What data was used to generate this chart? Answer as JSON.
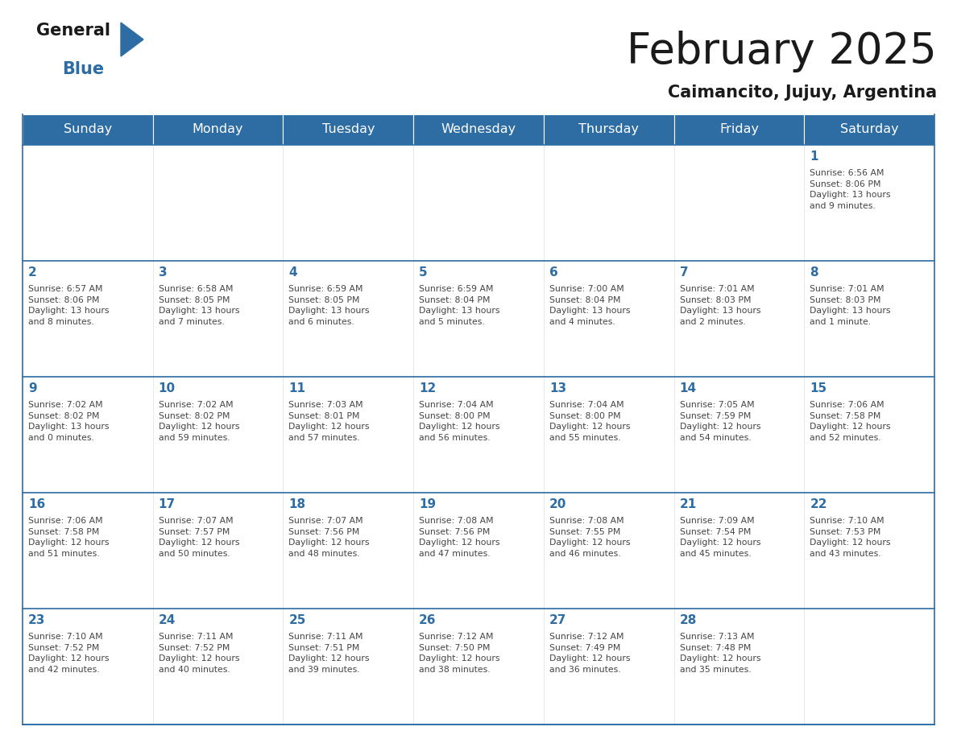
{
  "title": "February 2025",
  "subtitle": "Caimancito, Jujuy, Argentina",
  "days_of_week": [
    "Sunday",
    "Monday",
    "Tuesday",
    "Wednesday",
    "Thursday",
    "Friday",
    "Saturday"
  ],
  "header_bg": "#2E6DA4",
  "header_text": "#FFFFFF",
  "cell_bg": "#FFFFFF",
  "day_number_color": "#2E6DA4",
  "info_text_color": "#444444",
  "border_color": "#2E6DA4",
  "title_color": "#1a1a1a",
  "subtitle_color": "#1a1a1a",
  "weeks": [
    [
      {
        "day": null,
        "info": ""
      },
      {
        "day": null,
        "info": ""
      },
      {
        "day": null,
        "info": ""
      },
      {
        "day": null,
        "info": ""
      },
      {
        "day": null,
        "info": ""
      },
      {
        "day": null,
        "info": ""
      },
      {
        "day": 1,
        "info": "Sunrise: 6:56 AM\nSunset: 8:06 PM\nDaylight: 13 hours\nand 9 minutes."
      }
    ],
    [
      {
        "day": 2,
        "info": "Sunrise: 6:57 AM\nSunset: 8:06 PM\nDaylight: 13 hours\nand 8 minutes."
      },
      {
        "day": 3,
        "info": "Sunrise: 6:58 AM\nSunset: 8:05 PM\nDaylight: 13 hours\nand 7 minutes."
      },
      {
        "day": 4,
        "info": "Sunrise: 6:59 AM\nSunset: 8:05 PM\nDaylight: 13 hours\nand 6 minutes."
      },
      {
        "day": 5,
        "info": "Sunrise: 6:59 AM\nSunset: 8:04 PM\nDaylight: 13 hours\nand 5 minutes."
      },
      {
        "day": 6,
        "info": "Sunrise: 7:00 AM\nSunset: 8:04 PM\nDaylight: 13 hours\nand 4 minutes."
      },
      {
        "day": 7,
        "info": "Sunrise: 7:01 AM\nSunset: 8:03 PM\nDaylight: 13 hours\nand 2 minutes."
      },
      {
        "day": 8,
        "info": "Sunrise: 7:01 AM\nSunset: 8:03 PM\nDaylight: 13 hours\nand 1 minute."
      }
    ],
    [
      {
        "day": 9,
        "info": "Sunrise: 7:02 AM\nSunset: 8:02 PM\nDaylight: 13 hours\nand 0 minutes."
      },
      {
        "day": 10,
        "info": "Sunrise: 7:02 AM\nSunset: 8:02 PM\nDaylight: 12 hours\nand 59 minutes."
      },
      {
        "day": 11,
        "info": "Sunrise: 7:03 AM\nSunset: 8:01 PM\nDaylight: 12 hours\nand 57 minutes."
      },
      {
        "day": 12,
        "info": "Sunrise: 7:04 AM\nSunset: 8:00 PM\nDaylight: 12 hours\nand 56 minutes."
      },
      {
        "day": 13,
        "info": "Sunrise: 7:04 AM\nSunset: 8:00 PM\nDaylight: 12 hours\nand 55 minutes."
      },
      {
        "day": 14,
        "info": "Sunrise: 7:05 AM\nSunset: 7:59 PM\nDaylight: 12 hours\nand 54 minutes."
      },
      {
        "day": 15,
        "info": "Sunrise: 7:06 AM\nSunset: 7:58 PM\nDaylight: 12 hours\nand 52 minutes."
      }
    ],
    [
      {
        "day": 16,
        "info": "Sunrise: 7:06 AM\nSunset: 7:58 PM\nDaylight: 12 hours\nand 51 minutes."
      },
      {
        "day": 17,
        "info": "Sunrise: 7:07 AM\nSunset: 7:57 PM\nDaylight: 12 hours\nand 50 minutes."
      },
      {
        "day": 18,
        "info": "Sunrise: 7:07 AM\nSunset: 7:56 PM\nDaylight: 12 hours\nand 48 minutes."
      },
      {
        "day": 19,
        "info": "Sunrise: 7:08 AM\nSunset: 7:56 PM\nDaylight: 12 hours\nand 47 minutes."
      },
      {
        "day": 20,
        "info": "Sunrise: 7:08 AM\nSunset: 7:55 PM\nDaylight: 12 hours\nand 46 minutes."
      },
      {
        "day": 21,
        "info": "Sunrise: 7:09 AM\nSunset: 7:54 PM\nDaylight: 12 hours\nand 45 minutes."
      },
      {
        "day": 22,
        "info": "Sunrise: 7:10 AM\nSunset: 7:53 PM\nDaylight: 12 hours\nand 43 minutes."
      }
    ],
    [
      {
        "day": 23,
        "info": "Sunrise: 7:10 AM\nSunset: 7:52 PM\nDaylight: 12 hours\nand 42 minutes."
      },
      {
        "day": 24,
        "info": "Sunrise: 7:11 AM\nSunset: 7:52 PM\nDaylight: 12 hours\nand 40 minutes."
      },
      {
        "day": 25,
        "info": "Sunrise: 7:11 AM\nSunset: 7:51 PM\nDaylight: 12 hours\nand 39 minutes."
      },
      {
        "day": 26,
        "info": "Sunrise: 7:12 AM\nSunset: 7:50 PM\nDaylight: 12 hours\nand 38 minutes."
      },
      {
        "day": 27,
        "info": "Sunrise: 7:12 AM\nSunset: 7:49 PM\nDaylight: 12 hours\nand 36 minutes."
      },
      {
        "day": 28,
        "info": "Sunrise: 7:13 AM\nSunset: 7:48 PM\nDaylight: 12 hours\nand 35 minutes."
      },
      {
        "day": null,
        "info": ""
      }
    ]
  ]
}
